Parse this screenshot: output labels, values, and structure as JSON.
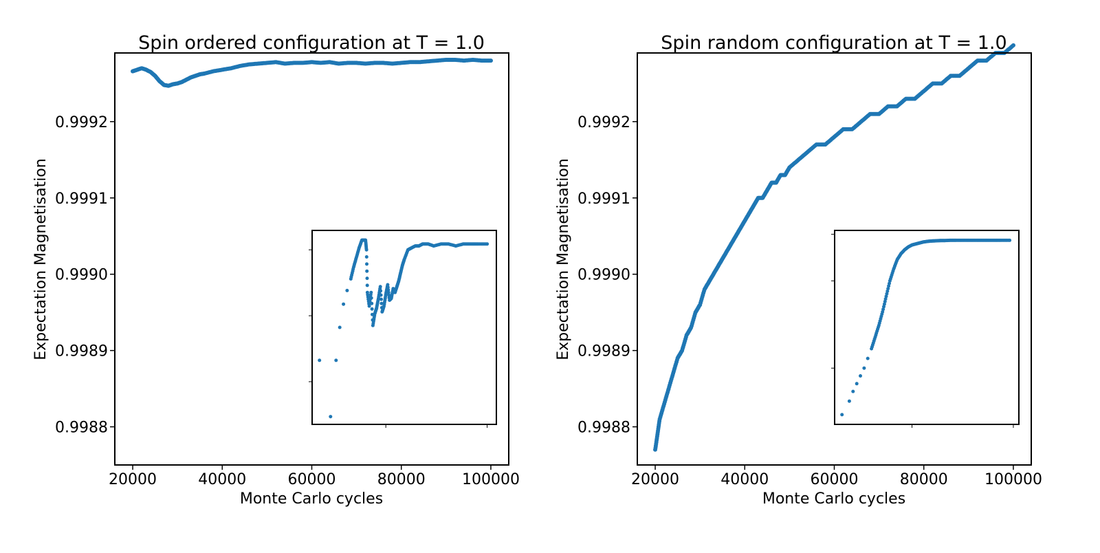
{
  "chart_data": [
    {
      "type": "scatter",
      "title": "Spin ordered configuration at T = 1.0",
      "xlabel": "Monte Carlo cycles",
      "ylabel": "Expectation Magnetisation",
      "xlim": [
        16000,
        104000
      ],
      "ylim": [
        0.99875,
        0.99929
      ],
      "x_ticks": [
        20000,
        40000,
        60000,
        80000,
        100000
      ],
      "x_tick_labels": [
        "20000",
        "40000",
        "60000",
        "80000",
        "100000"
      ],
      "y_ticks": [
        0.9988,
        0.9989,
        0.999,
        0.9991,
        0.9992
      ],
      "y_tick_labels": [
        "0.9988",
        "0.9989",
        "0.9990",
        "0.9991",
        "0.9992"
      ],
      "color": "#1f77b4",
      "grid": false,
      "series": [
        {
          "x": [
            20000,
            21000,
            22000,
            23000,
            24000,
            25000,
            26000,
            27000,
            28000,
            29000,
            30000,
            31000,
            32000,
            33000,
            34000,
            35000,
            36000,
            38000,
            40000,
            42000,
            44000,
            46000,
            48000,
            50000,
            52000,
            54000,
            56000,
            58000,
            60000,
            62000,
            64000,
            66000,
            68000,
            70000,
            72000,
            74000,
            76000,
            78000,
            80000,
            82000,
            84000,
            86000,
            88000,
            90000,
            92000,
            94000,
            96000,
            98000,
            100000
          ],
          "y": [
            0.999266,
            0.999268,
            0.99927,
            0.999268,
            0.999265,
            0.99926,
            0.999253,
            0.999248,
            0.999247,
            0.999249,
            0.99925,
            0.999252,
            0.999255,
            0.999258,
            0.99926,
            0.999262,
            0.999263,
            0.999266,
            0.999268,
            0.99927,
            0.999273,
            0.999275,
            0.999276,
            0.999277,
            0.999278,
            0.999276,
            0.999277,
            0.999277,
            0.999278,
            0.999277,
            0.999278,
            0.999276,
            0.999277,
            0.999277,
            0.999276,
            0.999277,
            0.999277,
            0.999276,
            0.999277,
            0.999278,
            0.999278,
            0.999279,
            0.99928,
            0.999281,
            0.999281,
            0.99928,
            0.999281,
            0.99928,
            0.99928
          ]
        }
      ],
      "inset": {
        "type": "scatter",
        "xlim": [
          0,
          100
        ],
        "ylim": [
          0,
          100
        ],
        "x_ticks": [
          40,
          95
        ],
        "y_ticks": [
          22,
          56,
          90
        ],
        "series": [
          {
            "x": [
              4,
              10,
              13,
              15,
              17,
              19,
              21,
              22.5,
              24,
              25.5,
              27,
              29,
              29.5,
              30,
              31,
              32,
              33,
              34,
              35,
              36,
              37,
              38,
              39,
              40,
              41,
              42,
              43,
              44,
              45,
              46,
              47,
              48,
              49,
              50,
              52,
              54,
              56,
              58,
              60,
              63,
              66,
              70,
              74,
              78,
              82,
              86,
              90,
              95
            ],
            "y": [
              33,
              4,
              33,
              50,
              62,
              69,
              75,
              81,
              86,
              91,
              95,
              95,
              90,
              68,
              61,
              68,
              51,
              57,
              60,
              65,
              71,
              58,
              61,
              67,
              72,
              64,
              65,
              70,
              68,
              71,
              74,
              78,
              82,
              85,
              90,
              91,
              92,
              92,
              93,
              93,
              92,
              93,
              93,
              92,
              93,
              93,
              93,
              93
            ]
          }
        ]
      }
    },
    {
      "type": "scatter",
      "title": "Spin random configuration at T = 1.0",
      "xlabel": "Monte Carlo cycles",
      "ylabel": "Expectation Magnetisation",
      "xlim": [
        16000,
        104000
      ],
      "ylim": [
        0.99875,
        0.99929
      ],
      "x_ticks": [
        20000,
        40000,
        60000,
        80000,
        100000
      ],
      "x_tick_labels": [
        "20000",
        "40000",
        "60000",
        "80000",
        "100000"
      ],
      "y_ticks": [
        0.9988,
        0.9989,
        0.999,
        0.9991,
        0.9992
      ],
      "y_tick_labels": [
        "0.9988",
        "0.9989",
        "0.9990",
        "0.9991",
        "0.9992"
      ],
      "color": "#1f77b4",
      "grid": false,
      "series": [
        {
          "x": [
            20000,
            20500,
            21000,
            22000,
            23000,
            24000,
            25000,
            26000,
            27000,
            28000,
            29000,
            30000,
            31000,
            32000,
            33000,
            34000,
            35000,
            36000,
            37000,
            38000,
            39000,
            40000,
            41000,
            42000,
            43000,
            44000,
            45000,
            46000,
            47000,
            48000,
            49000,
            50000,
            52000,
            54000,
            56000,
            58000,
            60000,
            62000,
            64000,
            66000,
            68000,
            70000,
            72000,
            74000,
            76000,
            78000,
            80000,
            82000,
            84000,
            86000,
            88000,
            90000,
            92000,
            94000,
            96000,
            98000,
            100000
          ],
          "y": [
            0.99877,
            0.99879,
            0.99881,
            0.99883,
            0.99885,
            0.99887,
            0.99889,
            0.9989,
            0.99892,
            0.99893,
            0.99895,
            0.99896,
            0.99898,
            0.99899,
            0.999,
            0.99901,
            0.99902,
            0.99903,
            0.99904,
            0.99905,
            0.99906,
            0.99907,
            0.99908,
            0.99909,
            0.9991,
            0.9991,
            0.99911,
            0.99912,
            0.99912,
            0.99913,
            0.99913,
            0.99914,
            0.99915,
            0.99916,
            0.99917,
            0.99917,
            0.99918,
            0.99919,
            0.99919,
            0.9992,
            0.99921,
            0.99921,
            0.99922,
            0.99922,
            0.99923,
            0.99923,
            0.99924,
            0.99925,
            0.99925,
            0.99926,
            0.99926,
            0.99927,
            0.99928,
            0.99928,
            0.99929,
            0.99929,
            0.9993
          ]
        }
      ],
      "inset": {
        "type": "scatter",
        "xlim": [
          0,
          100
        ],
        "ylim": [
          0,
          100
        ],
        "x_ticks": [
          42,
          97
        ],
        "y_ticks": [
          29,
          74,
          98
        ],
        "series": [
          {
            "x": [
              4,
              8,
              10,
              12,
              14,
              16,
              18,
              20,
              22,
              24,
              26,
              28,
              30,
              32,
              34,
              36,
              38,
              40,
              42,
              44,
              46,
              48,
              50,
              52,
              54,
              56,
              58,
              60,
              63,
              66,
              70,
              74,
              78,
              82,
              86,
              90,
              95
            ],
            "y": [
              5,
              12,
              17,
              21,
              25,
              29,
              34,
              39,
              45,
              51,
              58,
              66,
              74,
              80,
              85,
              88,
              90,
              91.5,
              92.5,
              93,
              93.5,
              94,
              94.3,
              94.5,
              94.6,
              94.7,
              94.8,
              94.8,
              94.9,
              94.9,
              94.9,
              94.9,
              94.9,
              94.9,
              94.9,
              94.9,
              94.9
            ]
          }
        ]
      }
    }
  ]
}
